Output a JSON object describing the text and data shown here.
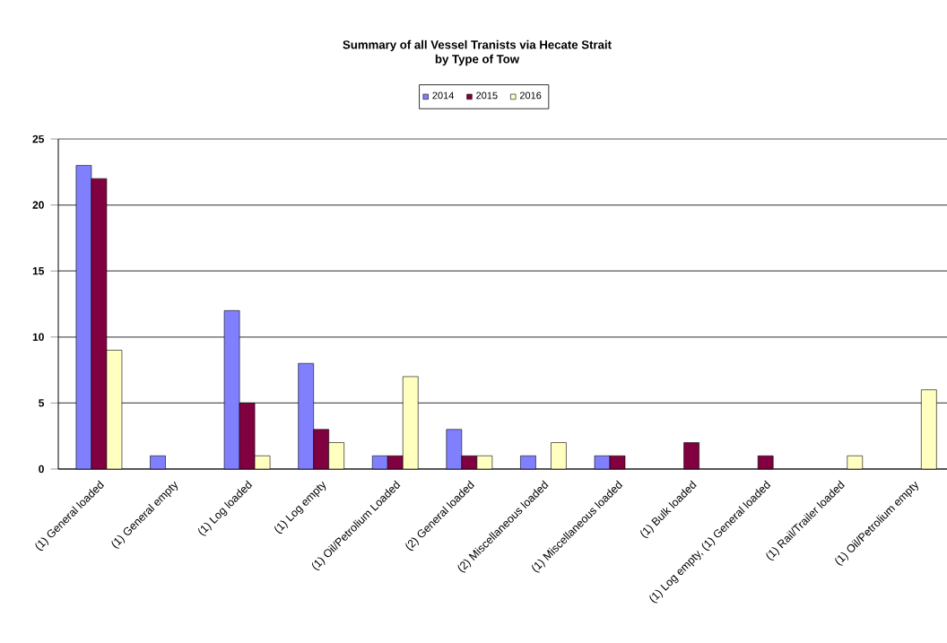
{
  "chart_data": {
    "type": "bar",
    "title": "Summary of all Vessel Tranists via Hecate Strait",
    "subtitle": "by Type of Tow",
    "categories": [
      "(1) General loaded",
      "(1) General empty",
      "(1) Log loaded",
      "(1) Log empty",
      "(1) Oil/Petrolium Loaded",
      "(2) General loaded",
      "(2) Miscellaneous loaded",
      "(1) Miscellaneous loaded",
      "(1) Bulk loaded",
      "(1) Log empty, (1) General loaded",
      "(1) Rail/Trailer loaded",
      "(1) Oil/Petrolium empty"
    ],
    "series": [
      {
        "name": "2014",
        "color": "#8080ff",
        "values": [
          23,
          1,
          12,
          8,
          1,
          3,
          1,
          1,
          null,
          null,
          null,
          null
        ]
      },
      {
        "name": "2015",
        "color": "#800040",
        "values": [
          22,
          null,
          5,
          3,
          1,
          1,
          null,
          1,
          2,
          1,
          null,
          null
        ]
      },
      {
        "name": "2016",
        "color": "#ffffc0",
        "values": [
          9,
          null,
          1,
          2,
          7,
          1,
          2,
          null,
          null,
          null,
          1,
          6
        ]
      }
    ],
    "ylim": [
      0,
      25
    ],
    "yticks": [
      0,
      5,
      10,
      15,
      20,
      25
    ],
    "grid": "y",
    "legend": "top"
  }
}
